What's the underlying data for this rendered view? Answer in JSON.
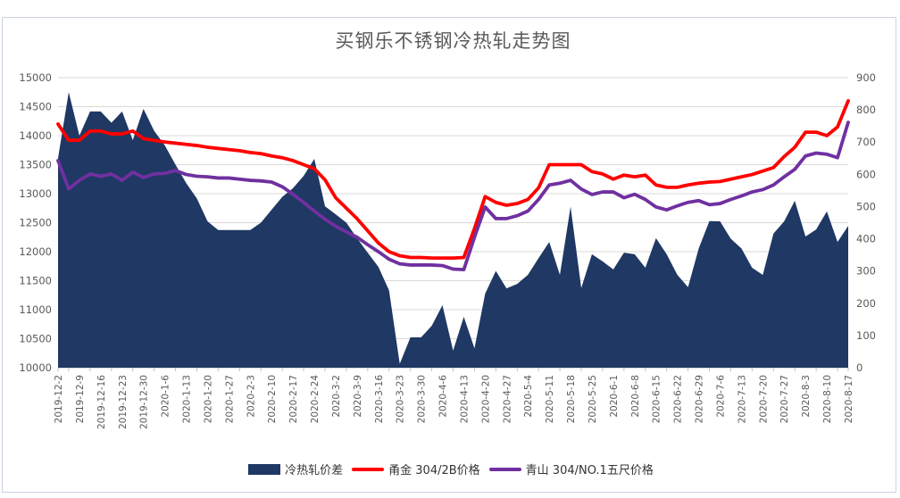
{
  "title": "买钢乐不锈钢冷热轧走势图",
  "legend": [
    {
      "label": "冷热轧价差",
      "type": "area",
      "color": "#1F3864"
    },
    {
      "label": "甬金 304/2B价格",
      "type": "line",
      "color": "#FF0000"
    },
    {
      "label": "青山 304/NO.1五尺价格",
      "type": "line",
      "color": "#7030A0"
    }
  ],
  "chart_data": {
    "type": "combo: area + 2 lines, dual y-axes, weekly-labelled daily series",
    "title": "买钢乐不锈钢冷热轧走势图",
    "x_labels": [
      "2019-12-2",
      "2019-12-9",
      "2019-12-16",
      "2019-12-23",
      "2019-12-30",
      "2020-1-6",
      "2020-1-13",
      "2020-1-20",
      "2020-1-27",
      "2020-2-3",
      "2020-2-10",
      "2020-2-17",
      "2020-2-24",
      "2020-3-2",
      "2020-3-9",
      "2020-3-16",
      "2020-3-23",
      "2020-3-30",
      "2020-4-6",
      "2020-4-13",
      "2020-4-20",
      "2020-4-27",
      "2020-5-4",
      "2020-5-11",
      "2020-5-18",
      "2020-5-25",
      "2020-6-1",
      "2020-6-8",
      "2020-6-15",
      "2020-6-22",
      "2020-6-29",
      "2020-7-6",
      "2020-7-13",
      "2020-7-20",
      "2020-7-27",
      "2020-8-3",
      "2020-8-10",
      "2020-8-17"
    ],
    "points_per_label_interval": 2,
    "left_axis": {
      "min": 10000,
      "max": 15000,
      "step": 500,
      "labels": [
        "15000",
        "14500",
        "14000",
        "13500",
        "13000",
        "12500",
        "12000",
        "11500",
        "11000",
        "10500",
        "10000"
      ]
    },
    "right_axis": {
      "min": 0,
      "max": 900,
      "step": 100,
      "labels": [
        "900",
        "800",
        "700",
        "600",
        "500",
        "400",
        "300",
        "200",
        "100",
        "0"
      ]
    },
    "grid": "horizontal gridlines on left-axis ticks",
    "legend_position": "bottom-center",
    "series": [
      {
        "name": "冷热轧价差",
        "type": "area",
        "axis": "right",
        "color": "#1F3864",
        "values": [
          650,
          855,
          720,
          795,
          795,
          760,
          795,
          706,
          803,
          735,
          690,
          630,
          573,
          525,
          454,
          427,
          427,
          427,
          427,
          450,
          490,
          530,
          557,
          595,
          648,
          501,
          476,
          450,
          402,
          357,
          313,
          240,
          12,
          94,
          94,
          130,
          194,
          53,
          158,
          60,
          230,
          300,
          246,
          260,
          288,
          340,
          390,
          288,
          500,
          247,
          352,
          330,
          305,
          357,
          352,
          310,
          402,
          352,
          288,
          250,
          370,
          455,
          454,
          400,
          370,
          310,
          288,
          416,
          454,
          518,
          407,
          429,
          485,
          390,
          440
        ]
      },
      {
        "name": "甬金 304/2B价格",
        "type": "line",
        "axis": "left",
        "color": "#FF0000",
        "values": [
          14200,
          13920,
          13920,
          14080,
          14080,
          14030,
          14030,
          14080,
          13950,
          13920,
          13890,
          13870,
          13850,
          13830,
          13800,
          13780,
          13760,
          13740,
          13710,
          13690,
          13650,
          13620,
          13570,
          13500,
          13430,
          13240,
          12930,
          12750,
          12570,
          12360,
          12150,
          12000,
          11930,
          11900,
          11900,
          11890,
          11890,
          11890,
          11900,
          12400,
          12950,
          12850,
          12800,
          12830,
          12900,
          13100,
          13500,
          13500,
          13500,
          13500,
          13380,
          13340,
          13250,
          13320,
          13290,
          13320,
          13150,
          13110,
          13110,
          13150,
          13180,
          13200,
          13210,
          13250,
          13290,
          13330,
          13390,
          13450,
          13640,
          13800,
          14060,
          14060,
          14000,
          14150,
          14600
        ]
      },
      {
        "name": "青山 304/NO.1五尺价格",
        "type": "line",
        "axis": "left",
        "color": "#7030A0",
        "values": [
          13570,
          13080,
          13230,
          13340,
          13300,
          13340,
          13230,
          13370,
          13280,
          13340,
          13350,
          13400,
          13330,
          13300,
          13290,
          13270,
          13270,
          13250,
          13230,
          13220,
          13200,
          13120,
          12990,
          12850,
          12700,
          12560,
          12440,
          12340,
          12250,
          12120,
          12000,
          11870,
          11790,
          11770,
          11770,
          11770,
          11760,
          11700,
          11690,
          12250,
          12770,
          12570,
          12570,
          12620,
          12700,
          12900,
          13150,
          13180,
          13230,
          13080,
          12985,
          13030,
          13030,
          12930,
          12990,
          12900,
          12770,
          12720,
          12790,
          12850,
          12880,
          12810,
          12830,
          12900,
          12960,
          13030,
          13070,
          13150,
          13290,
          13420,
          13650,
          13700,
          13680,
          13620,
          14230
        ]
      }
    ],
    "colors": {
      "area": "#1F3864",
      "line_red": "#FF0000",
      "line_purple": "#7030A0",
      "gridline": "#d9d9d9",
      "axis_line": "#bfbfbf",
      "axis_label": "#595959",
      "title_text": "#595959",
      "frame_border": "#ccd4e0",
      "background": "#ffffff"
    }
  }
}
